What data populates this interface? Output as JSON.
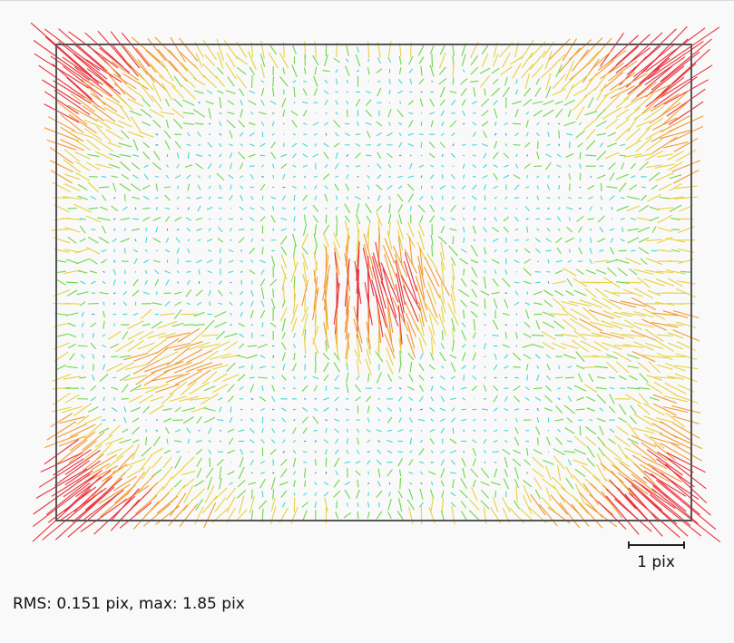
{
  "chart_data": {
    "type": "quiver",
    "description_text": "",
    "frame": {
      "border_color": "#555555"
    },
    "grid": {
      "cols": 60,
      "rows": 45
    },
    "displacement_field": {
      "unit": "pix",
      "rms": 0.151,
      "max": 1.85,
      "model": "radial distortion (corners) + central rotational vortex + lower-side lobes",
      "magnitude_color_scale": [
        {
          "upto": 0.05,
          "color": "#4a90d9"
        },
        {
          "upto": 0.12,
          "color": "#44d7d7"
        },
        {
          "upto": 0.25,
          "color": "#6ad64a"
        },
        {
          "upto": 0.45,
          "color": "#e6d23f"
        },
        {
          "upto": 0.7,
          "color": "#f29a2e"
        },
        {
          "upto": 99,
          "color": "#e8323a"
        }
      ]
    },
    "scale_bar": {
      "value": 1,
      "unit": "pix",
      "label": "1 pix"
    },
    "stats_text": "RMS: 0.151 pix, max: 1.85 pix"
  }
}
